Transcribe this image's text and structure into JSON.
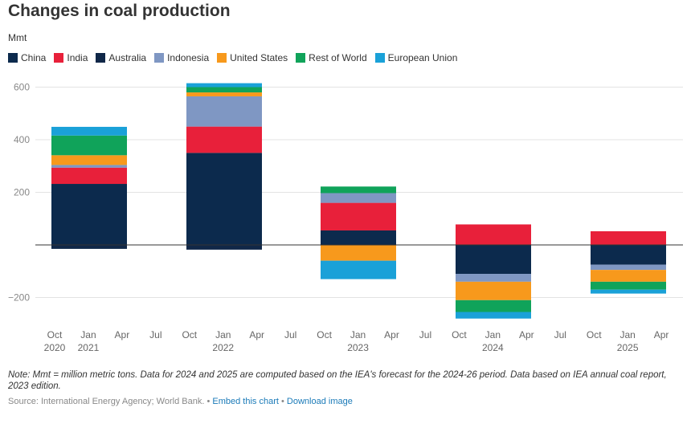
{
  "chart_data": {
    "type": "bar",
    "stacked": true,
    "title": "Changes in coal production",
    "ylabel": "Mmt",
    "ylim": [
      -300,
      630
    ],
    "yticks": [
      600,
      400,
      200,
      0,
      -200
    ],
    "ytick_labels": [
      "600",
      "400",
      "200",
      "",
      "−200"
    ],
    "grid": true,
    "legend_position": "top-left",
    "x_axis": {
      "month_labels": [
        "Oct",
        "Jan",
        "Apr",
        "Jul",
        "Oct",
        "Jan",
        "Apr",
        "Jul",
        "Oct",
        "Jan",
        "Apr",
        "Jul",
        "Oct",
        "Jan",
        "Apr",
        "Jul",
        "Oct",
        "Jan",
        "Apr"
      ],
      "year_labels": [
        {
          "label": "2020",
          "tick": 0
        },
        {
          "label": "2021",
          "tick": 1
        },
        {
          "label": "2022",
          "tick": 5
        },
        {
          "label": "2023",
          "tick": 9
        },
        {
          "label": "2024",
          "tick": 13
        },
        {
          "label": "2025",
          "tick": 17
        }
      ]
    },
    "categories": [
      "2021",
      "2022",
      "2023",
      "2024",
      "2025"
    ],
    "series": [
      {
        "name": "China",
        "color": "#0c2a4d",
        "values": [
          232,
          350,
          55,
          -110,
          -75
        ]
      },
      {
        "name": "India",
        "color": "#e8203a",
        "values": [
          62,
          100,
          105,
          78,
          52
        ]
      },
      {
        "name": "Australia",
        "color": "#102748",
        "values": [
          -15,
          -18,
          0,
          0,
          0
        ]
      },
      {
        "name": "Indonesia",
        "color": "#7f97c3",
        "values": [
          10,
          115,
          37,
          -30,
          -20
        ]
      },
      {
        "name": "United States",
        "color": "#f7991c",
        "values": [
          37,
          15,
          -60,
          -70,
          -45
        ]
      },
      {
        "name": "Rest of World",
        "color": "#10a35a",
        "values": [
          75,
          20,
          25,
          -45,
          -30
        ]
      },
      {
        "name": "European Union",
        "color": "#1aa1d8",
        "values": [
          33,
          15,
          -70,
          -25,
          -15
        ]
      }
    ]
  },
  "footer": {
    "note": "Note: Mmt = million metric tons. Data for 2024 and 2025 are computed based on the IEA's forecast for the 2024-26 period. Data based on IEA annual coal report, 2023 edition.",
    "source": "Source: International Energy Agency; World Bank.",
    "separator": "•",
    "embed_link": "Embed this chart",
    "download_link": "Download image"
  }
}
